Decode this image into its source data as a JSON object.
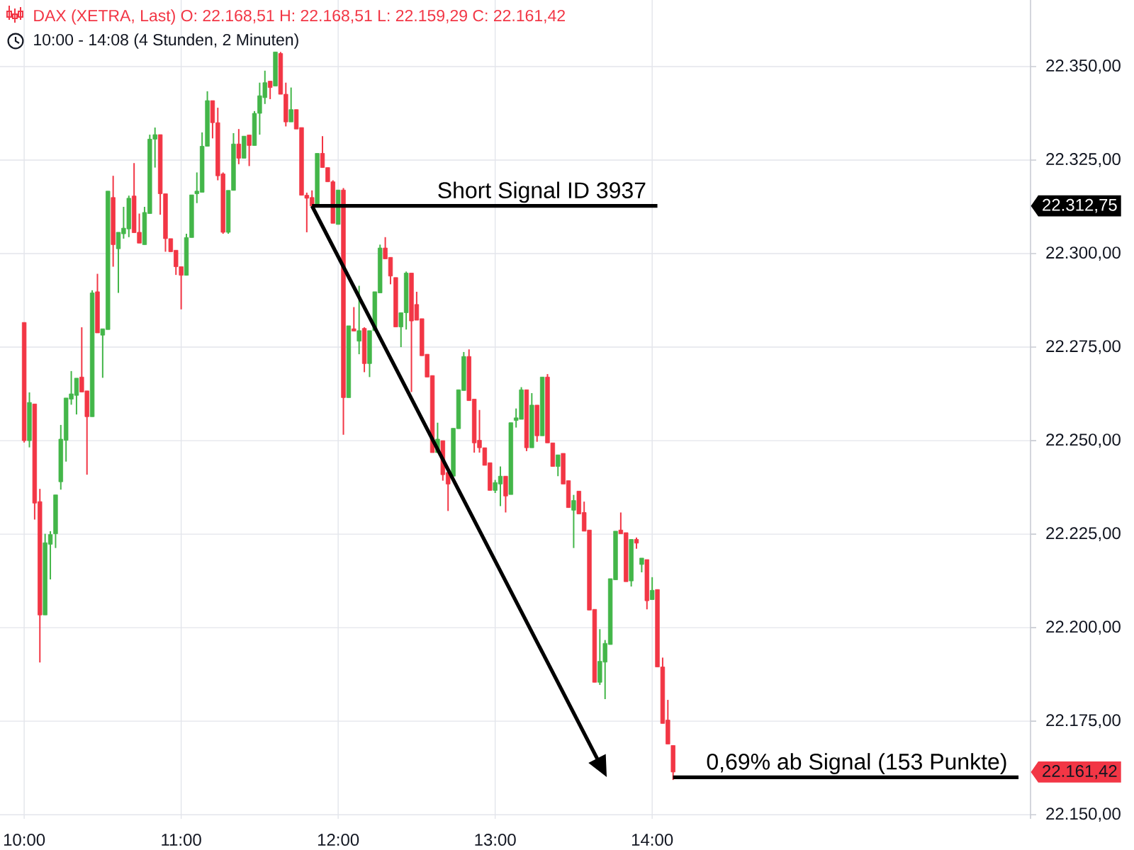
{
  "chart_data": {
    "type": "candlestick",
    "title": "DAX (XETRA, Last)  O: 22.168,51  H: 22.168,51  L: 22.159,29  C: 22.161,42",
    "subtitle": "10:00 - 14:08  (4 Stunden, 2 Minuten)",
    "x": [
      10,
      10.0333,
      10.0667,
      10.1,
      10.1333,
      10.1667,
      10.2,
      10.2333,
      10.2667,
      10.3,
      10.3333,
      10.3667,
      10.4,
      10.4333,
      10.4667,
      10.5,
      10.5333,
      10.5667,
      10.6,
      10.6333,
      10.6667,
      10.7,
      10.7333,
      10.7667,
      10.8,
      10.8333,
      10.8667,
      10.9,
      10.9333,
      10.9667,
      11,
      11.0333,
      11.0667,
      11.1,
      11.1333,
      11.1667,
      11.2,
      11.2333,
      11.2667,
      11.3,
      11.3333,
      11.3667,
      11.4,
      11.4333,
      11.4667,
      11.5,
      11.5333,
      11.5667,
      11.6,
      11.6333,
      11.6667,
      11.7,
      11.7333,
      11.7667,
      11.8,
      11.8333,
      11.8667,
      11.9,
      11.9333,
      11.9667,
      12,
      12.0333,
      12.0667,
      12.1,
      12.1333,
      12.1667,
      12.2,
      12.2333,
      12.2667,
      12.3,
      12.3333,
      12.3667,
      12.4,
      12.4333,
      12.4667,
      12.5,
      12.5333,
      12.5667,
      12.6,
      12.6333,
      12.6667,
      12.7,
      12.7333,
      12.7667,
      12.8,
      12.8333,
      12.8667,
      12.9,
      12.9333,
      12.9667,
      13,
      13.0333,
      13.0667,
      13.1,
      13.1333,
      13.1667,
      13.2,
      13.2333,
      13.2667,
      13.3,
      13.3333,
      13.3667,
      13.4,
      13.4333,
      13.4667,
      13.5,
      13.5333,
      13.5667,
      13.6,
      13.6333,
      13.6667,
      13.7,
      13.7333,
      13.7667,
      13.8,
      13.8333,
      13.8667,
      13.9,
      13.9333,
      13.9667,
      14,
      14.0333,
      14.0667,
      14.1,
      14.1333
    ],
    "ohlc": [
      [
        22281.6,
        22281.6,
        22249.5,
        22250.0
      ],
      [
        22250.0,
        22262.9,
        22248.2,
        22260.2
      ],
      [
        22259.8,
        22259.8,
        22228.9,
        22233.3
      ],
      [
        22233.7,
        22237.1,
        22190.7,
        22203.4
      ],
      [
        22203.4,
        22225.1,
        22203.4,
        22222.7
      ],
      [
        22222.3,
        22225.8,
        22212.9,
        22224.9
      ],
      [
        22225.1,
        22235.5,
        22221.3,
        22235.5
      ],
      [
        22239.0,
        22254.2,
        22236.9,
        22250.4
      ],
      [
        22250.1,
        22261.4,
        22244.4,
        22261.4
      ],
      [
        22261.1,
        22268.6,
        22259.6,
        22262.5
      ],
      [
        22262.1,
        22266.7,
        22257.0,
        22266.7
      ],
      [
        22267.0,
        22280.3,
        22263.0,
        22263.0
      ],
      [
        22263.3,
        22263.3,
        22240.9,
        22256.4
      ],
      [
        22256.4,
        22290.2,
        22256.4,
        22289.5
      ],
      [
        22289.8,
        22294.6,
        22278.8,
        22278.8
      ],
      [
        22278.2,
        22279.9,
        22266.8,
        22279.9
      ],
      [
        22279.7,
        22316.7,
        22279.7,
        22316.7
      ],
      [
        22315.0,
        22320.8,
        22296.5,
        22302.4
      ],
      [
        22301.3,
        22305.7,
        22289.5,
        22305.7
      ],
      [
        22305.3,
        22312.5,
        22304.0,
        22306.8
      ],
      [
        22306.6,
        22315.5,
        22304.4,
        22314.8
      ],
      [
        22315.4,
        22324.2,
        22305.6,
        22305.6
      ],
      [
        22305.7,
        22310.7,
        22302.8,
        22302.8
      ],
      [
        22302.4,
        22312.5,
        22302.4,
        22311.0
      ],
      [
        22310.7,
        22331.8,
        22310.7,
        22330.6
      ],
      [
        22330.6,
        22333.7,
        22323.0,
        22331.8
      ],
      [
        22331.8,
        22331.8,
        22310.4,
        22316.0
      ],
      [
        22316.0,
        22316.0,
        22300.5,
        22304.0
      ],
      [
        22304.0,
        22304.0,
        22300.5,
        22300.5
      ],
      [
        22300.9,
        22300.9,
        22294.3,
        22296.5
      ],
      [
        22296.5,
        22296.5,
        22285.1,
        22294.2
      ],
      [
        22294.2,
        22305.3,
        22294.2,
        22304.3
      ],
      [
        22304.3,
        22315.7,
        22304.3,
        22315.7
      ],
      [
        22316.0,
        22321.7,
        22313.5,
        22316.7
      ],
      [
        22316.4,
        22332.4,
        22316.4,
        22328.7
      ],
      [
        22328.7,
        22343.4,
        22328.7,
        22340.9
      ],
      [
        22340.9,
        22340.9,
        22330.8,
        22335.0
      ],
      [
        22335.0,
        22339.0,
        22319.6,
        22320.8
      ],
      [
        22321.3,
        22321.7,
        22305.3,
        22305.7
      ],
      [
        22305.7,
        22316.9,
        22305.3,
        22316.9
      ],
      [
        22316.9,
        22332.2,
        22316.9,
        22329.3
      ],
      [
        22329.3,
        22333.3,
        22323.9,
        22325.5
      ],
      [
        22325.5,
        22331.4,
        22325.5,
        22331.4
      ],
      [
        22331.7,
        22331.7,
        22323.4,
        22328.9
      ],
      [
        22328.9,
        22338.1,
        22328.9,
        22337.5
      ],
      [
        22337.5,
        22345.7,
        22331.8,
        22342.2
      ],
      [
        22341.7,
        22348.9,
        22340.0,
        22345.7
      ],
      [
        22346.1,
        22346.1,
        22341.3,
        22344.4
      ],
      [
        22344.8,
        22353.9,
        22344.8,
        22353.9
      ],
      [
        22353.5,
        22353.9,
        22342.6,
        22342.6
      ],
      [
        22342.6,
        22345.7,
        22334.0,
        22335.2
      ],
      [
        22335.2,
        22344.4,
        22335.2,
        22338.5
      ],
      [
        22338.5,
        22338.5,
        22333.3,
        22333.3
      ],
      [
        22333.7,
        22333.7,
        22315.6,
        22315.6
      ],
      [
        22315.6,
        22316.3,
        22305.7,
        22314.8
      ],
      [
        22315.0,
        22316.9,
        22312.5,
        22312.75
      ],
      [
        22312.5,
        22326.8,
        22312.5,
        22326.8
      ],
      [
        22326.8,
        22331.4,
        22323.0,
        22323.0
      ],
      [
        22323.0,
        22323.0,
        22319.2,
        22319.2
      ],
      [
        22319.2,
        22319.6,
        22308.1,
        22308.1
      ],
      [
        22307.8,
        22317.0,
        22307.8,
        22317.0
      ],
      [
        22317.0,
        22317.5,
        22251.6,
        22261.5
      ],
      [
        22261.5,
        22280.7,
        22261.5,
        22280.7
      ],
      [
        22279.9,
        22285.7,
        22279.3,
        22279.3
      ],
      [
        22276.6,
        22291.4,
        22273.1,
        22279.4
      ],
      [
        22280.0,
        22280.3,
        22268.3,
        22270.6
      ],
      [
        22270.6,
        22279.4,
        22267.0,
        22279.4
      ],
      [
        22279.4,
        22289.8,
        22279.4,
        22289.8
      ],
      [
        22289.5,
        22302.4,
        22289.5,
        22301.5
      ],
      [
        22301.5,
        22304.4,
        22298.6,
        22298.6
      ],
      [
        22299.0,
        22299.0,
        22291.8,
        22294.0
      ],
      [
        22293.6,
        22293.6,
        22280.4,
        22280.4
      ],
      [
        22280.4,
        22284.2,
        22275.0,
        22284.2
      ],
      [
        22284.2,
        22295.2,
        22279.7,
        22294.8
      ],
      [
        22294.8,
        22294.8,
        22263.0,
        22282.0
      ],
      [
        22286.4,
        22289.8,
        22282.2,
        22282.2
      ],
      [
        22282.6,
        22282.6,
        22272.7,
        22272.7
      ],
      [
        22273.1,
        22273.1,
        22267.0,
        22267.0
      ],
      [
        22267.4,
        22267.4,
        22246.8,
        22246.8
      ],
      [
        22246.8,
        22254.8,
        22246.8,
        22250.4
      ],
      [
        22250.0,
        22250.0,
        22239.3,
        22240.9
      ],
      [
        22241.5,
        22241.5,
        22231.2,
        22238.4
      ],
      [
        22240.5,
        22253.3,
        22240.5,
        22253.3
      ],
      [
        22253.2,
        22263.6,
        22253.2,
        22263.6
      ],
      [
        22263.4,
        22273.7,
        22263.4,
        22272.5
      ],
      [
        22272.5,
        22274.4,
        22260.7,
        22260.7
      ],
      [
        22261.1,
        22261.1,
        22246.8,
        22249.4
      ],
      [
        22250.1,
        22258.2,
        22246.8,
        22248.1
      ],
      [
        22248.1,
        22248.1,
        22243.4,
        22243.4
      ],
      [
        22244.1,
        22244.1,
        22236.7,
        22236.7
      ],
      [
        22236.7,
        22239.5,
        22236.0,
        22238.8
      ],
      [
        22238.4,
        22243.1,
        22232.5,
        22240.5
      ],
      [
        22240.5,
        22240.5,
        22230.8,
        22235.2
      ],
      [
        22235.6,
        22254.8,
        22235.6,
        22254.8
      ],
      [
        22255.4,
        22258.6,
        22253.5,
        22256.1
      ],
      [
        22255.7,
        22264.3,
        22255.7,
        22263.6
      ],
      [
        22263.6,
        22263.6,
        22247.2,
        22248.1
      ],
      [
        22248.1,
        22262.7,
        22248.1,
        22259.5
      ],
      [
        22259.5,
        22259.5,
        22249.7,
        22251.3
      ],
      [
        22251.3,
        22267.0,
        22251.3,
        22267.0
      ],
      [
        22267.0,
        22267.8,
        22249.4,
        22249.4
      ],
      [
        22249.4,
        22249.4,
        22243.1,
        22243.1
      ],
      [
        22243.1,
        22246.2,
        22240.5,
        22246.2
      ],
      [
        22246.6,
        22246.6,
        22238.4,
        22238.4
      ],
      [
        22239.3,
        22239.3,
        22232.1,
        22232.1
      ],
      [
        22231.4,
        22235.5,
        22221.3,
        22234.0
      ],
      [
        22236.5,
        22236.5,
        22230.4,
        22230.4
      ],
      [
        22230.8,
        22233.7,
        22225.8,
        22225.8
      ],
      [
        22226.1,
        22226.1,
        22204.7,
        22204.7
      ],
      [
        22204.9,
        22204.9,
        22185.4,
        22185.4
      ],
      [
        22185.4,
        22199.6,
        22184.7,
        22191.0
      ],
      [
        22190.8,
        22196.7,
        22180.9,
        22195.8
      ],
      [
        22195.5,
        22213.1,
        22195.5,
        22213.1
      ],
      [
        22212.8,
        22225.8,
        22212.8,
        22225.8
      ],
      [
        22226.1,
        22230.8,
        22225.1,
        22225.1
      ],
      [
        22225.4,
        22225.4,
        22212.3,
        22212.3
      ],
      [
        22212.5,
        22223.6,
        22211.0,
        22223.6
      ],
      [
        22223.6,
        22224.1,
        22221.1,
        22222.6
      ],
      [
        22216.9,
        22218.6,
        22214.8,
        22218.6
      ],
      [
        22218.2,
        22218.2,
        22204.9,
        22207.2
      ],
      [
        22207.5,
        22213.5,
        22207.5,
        22210.0
      ],
      [
        22210.2,
        22210.2,
        22189.5,
        22189.5
      ],
      [
        22189.5,
        22192.0,
        22174.4,
        22174.4
      ],
      [
        22175.3,
        22180.7,
        22168.9,
        22168.9
      ],
      [
        22168.51,
        22168.51,
        22159.29,
        22161.42
      ]
    ],
    "colors": [
      "#f23645",
      "#43b649",
      "#f23645",
      "#f23645",
      "#43b649",
      "#43b649",
      "#43b649",
      "#43b649",
      "#43b649",
      "#43b649",
      "#43b649",
      "#f23645",
      "#f23645",
      "#43b649",
      "#f23645",
      "#43b649",
      "#43b649",
      "#f23645",
      "#43b649",
      "#43b649",
      "#43b649",
      "#f23645",
      "#f23645",
      "#43b649",
      "#43b649",
      "#43b649",
      "#f23645",
      "#f23645",
      "#f23645",
      "#f23645",
      "#f23645",
      "#43b649",
      "#43b649",
      "#43b649",
      "#43b649",
      "#43b649",
      "#f23645",
      "#f23645",
      "#f23645",
      "#43b649",
      "#43b649",
      "#f23645",
      "#43b649",
      "#f23645",
      "#43b649",
      "#43b649",
      "#43b649",
      "#f23645",
      "#43b649",
      "#f23645",
      "#f23645",
      "#43b649",
      "#f23645",
      "#f23645",
      "#f23645",
      "#f23645",
      "#43b649",
      "#f23645",
      "#f23645",
      "#f23645",
      "#43b649",
      "#f23645",
      "#43b649",
      "#f23645",
      "#43b649",
      "#f23645",
      "#43b649",
      "#43b649",
      "#43b649",
      "#f23645",
      "#f23645",
      "#f23645",
      "#43b649",
      "#43b649",
      "#f23645",
      "#f23645",
      "#f23645",
      "#f23645",
      "#f23645",
      "#43b649",
      "#f23645",
      "#f23645",
      "#43b649",
      "#43b649",
      "#43b649",
      "#f23645",
      "#f23645",
      "#f23645",
      "#f23645",
      "#f23645",
      "#43b649",
      "#43b649",
      "#f23645",
      "#43b649",
      "#43b649",
      "#43b649",
      "#f23645",
      "#43b649",
      "#f23645",
      "#43b649",
      "#f23645",
      "#f23645",
      "#43b649",
      "#f23645",
      "#f23645",
      "#43b649",
      "#f23645",
      "#f23645",
      "#f23645",
      "#f23645",
      "#43b649",
      "#43b649",
      "#43b649",
      "#43b649",
      "#f23645",
      "#f23645",
      "#43b649",
      "#f23645",
      "#43b649",
      "#f23645",
      "#43b649",
      "#f23645",
      "#f23645",
      "#f23645",
      "#f23645"
    ],
    "xlim": [
      9.846,
      16.41
    ],
    "ylim": [
      22148.9,
      22367.8
    ],
    "xticks": [
      {
        "value": 10,
        "label": "10:00"
      },
      {
        "value": 11,
        "label": "11:00"
      },
      {
        "value": 12,
        "label": "12:00"
      },
      {
        "value": 13,
        "label": "13:00"
      },
      {
        "value": 14,
        "label": "14:00"
      }
    ],
    "yticks": [
      {
        "value": 22150,
        "label": "22.150,00"
      },
      {
        "value": 22175,
        "label": "22.175,00"
      },
      {
        "value": 22200,
        "label": "22.200,00"
      },
      {
        "value": 22225,
        "label": "22.225,00"
      },
      {
        "value": 22250,
        "label": "22.250,00"
      },
      {
        "value": 22275,
        "label": "22.275,00"
      },
      {
        "value": 22300,
        "label": "22.300,00"
      },
      {
        "value": 22325,
        "label": "22.325,00"
      },
      {
        "value": 22350,
        "label": "22.350,00"
      }
    ],
    "grid": true,
    "annotations": [
      {
        "text": "Short Signal  ID 3937",
        "x": 11.8333,
        "y": 22312.75
      },
      {
        "text": "0,69% ab Signal (153 Punkte)",
        "x": 14.1333,
        "y": 22160
      },
      "22.312,75",
      "22.161,42"
    ]
  }
}
